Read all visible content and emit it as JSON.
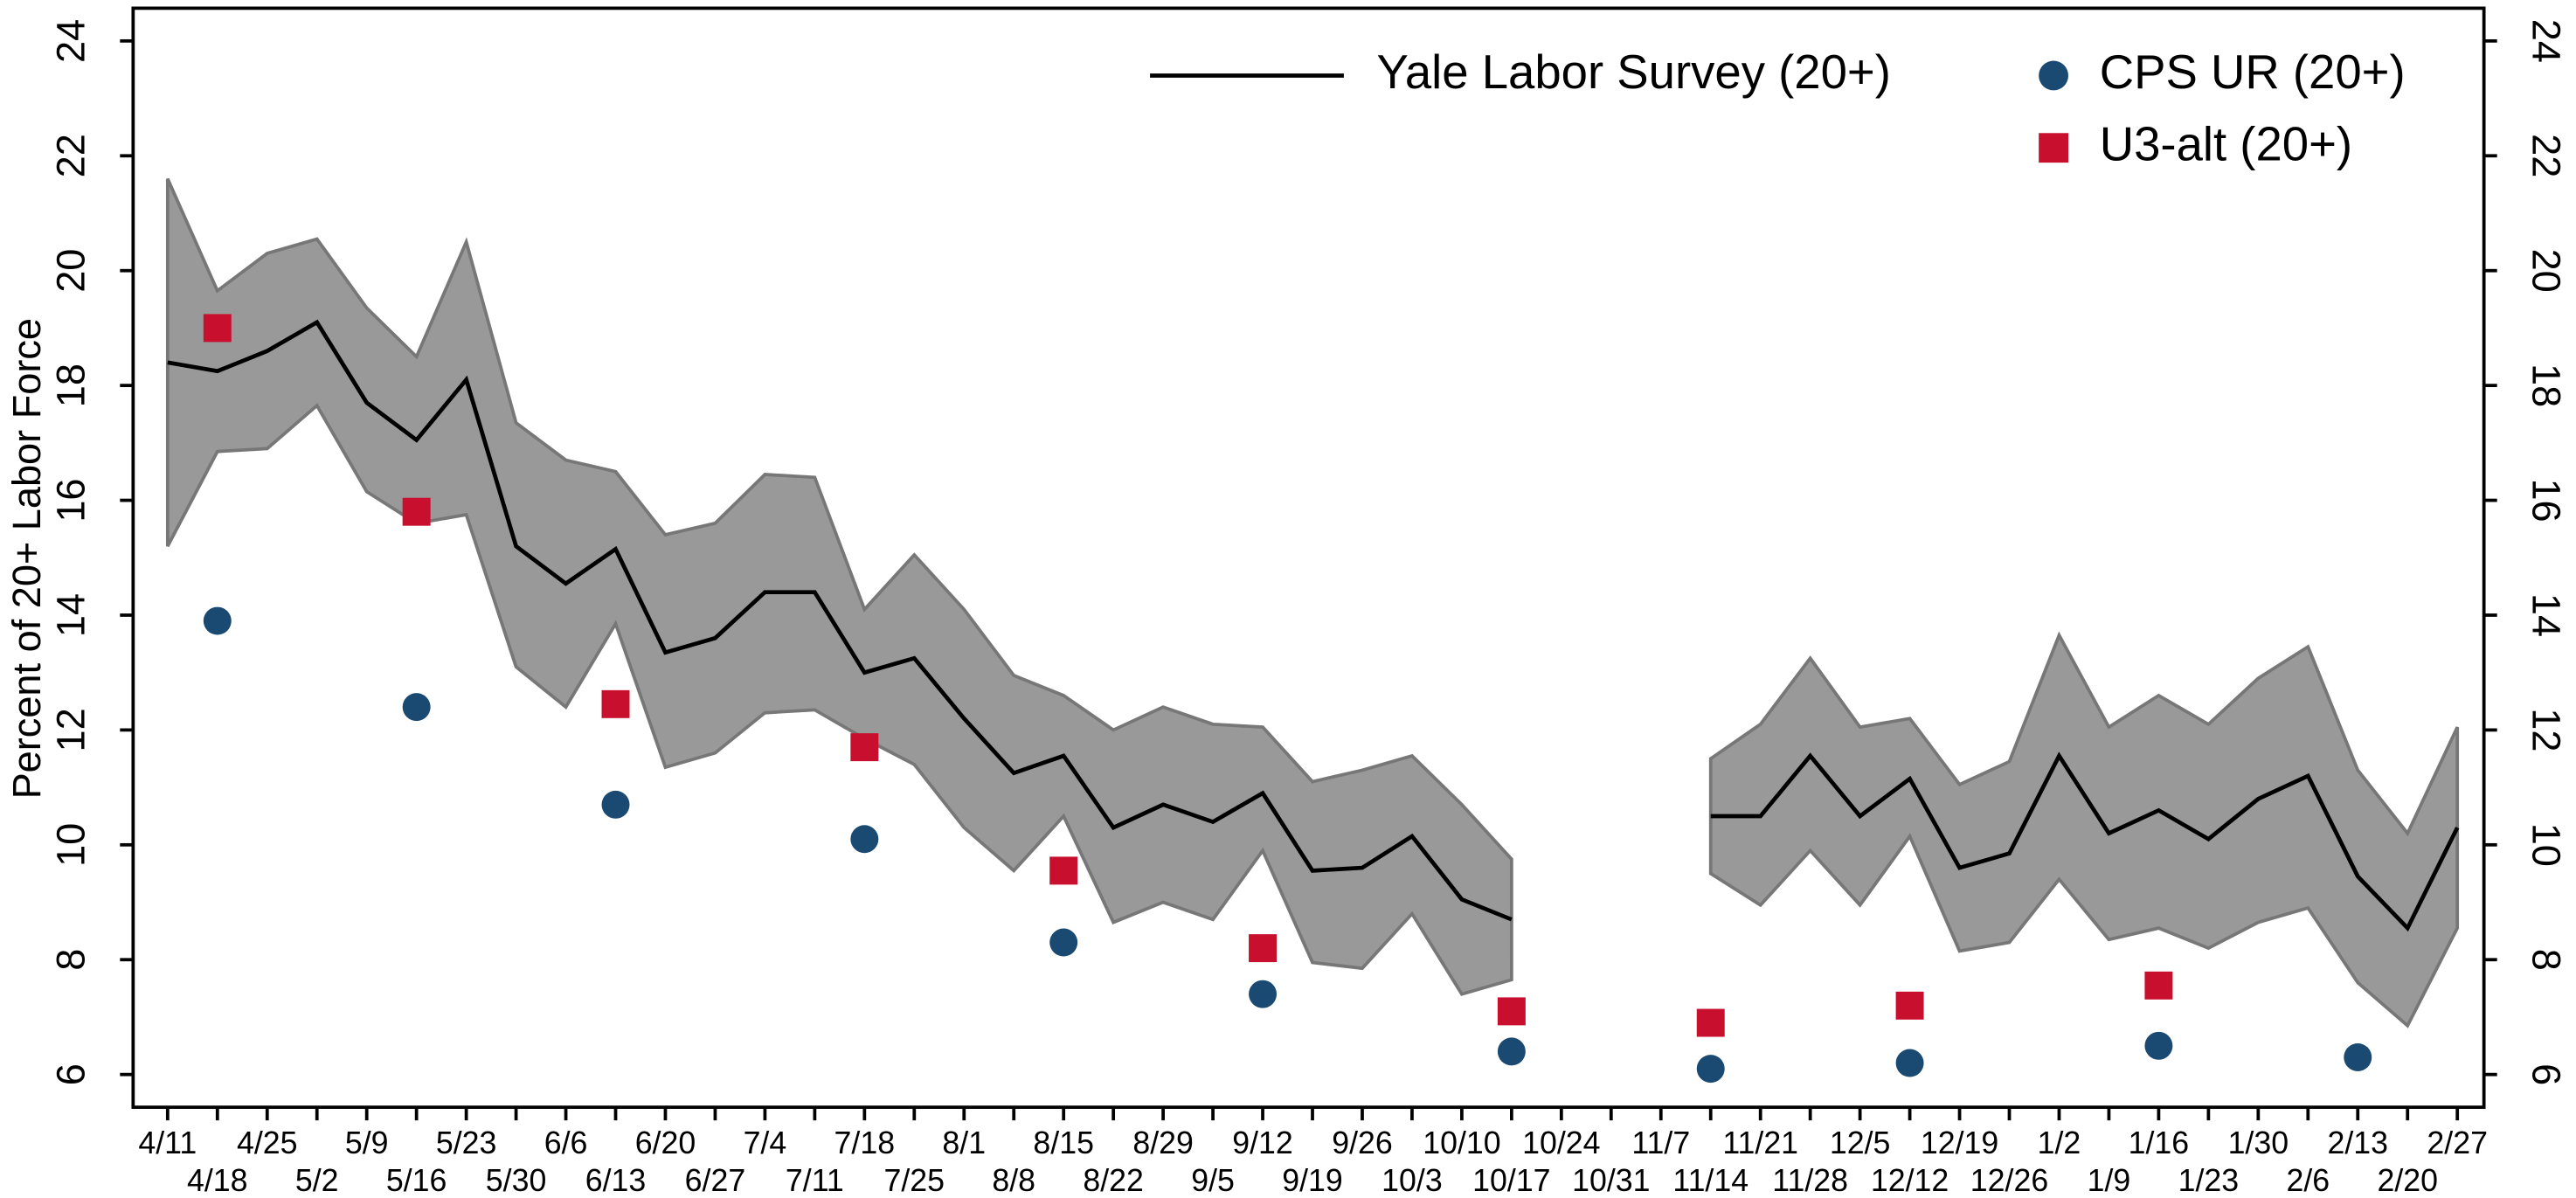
{
  "chart_data": {
    "type": "line",
    "y_label": "Percent of 20+ Labor Force",
    "categories": [
      "4/11",
      "4/18",
      "4/25",
      "5/2",
      "5/9",
      "5/16",
      "5/23",
      "5/30",
      "6/6",
      "6/13",
      "6/20",
      "6/27",
      "7/4",
      "7/11",
      "7/18",
      "7/25",
      "8/1",
      "8/8",
      "8/15",
      "8/22",
      "8/29",
      "9/5",
      "9/12",
      "9/19",
      "9/26",
      "10/3",
      "10/10",
      "10/17",
      "10/24",
      "10/31",
      "11/7",
      "11/14",
      "11/21",
      "11/28",
      "12/5",
      "12/12",
      "12/19",
      "12/26",
      "1/2",
      "1/9",
      "1/16",
      "1/23",
      "1/30",
      "2/6",
      "2/13",
      "2/20",
      "2/27"
    ],
    "series": [
      {
        "name": "Yale Labor Survey (20+)",
        "marker": "line",
        "color": "#000000",
        "values": [
          18.4,
          18.25,
          18.6,
          19.1,
          17.7,
          17.05,
          18.1,
          15.2,
          14.55,
          15.15,
          13.35,
          13.6,
          14.4,
          14.4,
          13.0,
          13.25,
          12.2,
          11.25,
          11.55,
          10.3,
          10.7,
          10.4,
          10.9,
          9.55,
          9.6,
          10.15,
          9.05,
          8.7,
          null,
          null,
          null,
          10.5,
          10.5,
          11.55,
          10.5,
          11.15,
          9.6,
          9.85,
          11.55,
          10.2,
          10.6,
          10.1,
          10.8,
          11.2,
          9.45,
          8.55,
          10.3
        ],
        "band": {
          "color": "#999999",
          "upper": [
            21.6,
            19.65,
            20.3,
            20.55,
            19.35,
            18.5,
            20.5,
            17.35,
            16.7,
            16.5,
            15.4,
            15.6,
            16.45,
            16.4,
            14.1,
            15.05,
            14.1,
            12.95,
            12.6,
            12.0,
            12.4,
            12.1,
            12.05,
            11.1,
            11.3,
            11.55,
            10.7,
            9.75,
            null,
            null,
            null,
            11.5,
            12.1,
            13.25,
            12.05,
            12.2,
            11.05,
            11.45,
            13.65,
            12.05,
            12.6,
            12.1,
            12.9,
            13.45,
            11.3,
            10.2,
            12.05
          ],
          "lower": [
            15.2,
            16.85,
            16.9,
            17.65,
            16.15,
            15.6,
            15.75,
            13.1,
            12.4,
            13.85,
            11.35,
            11.6,
            12.3,
            12.35,
            11.85,
            11.4,
            10.3,
            9.55,
            10.5,
            8.65,
            9.0,
            8.7,
            9.9,
            7.95,
            7.85,
            8.8,
            7.4,
            7.65,
            null,
            null,
            null,
            9.5,
            8.95,
            9.9,
            8.95,
            10.15,
            8.15,
            8.3,
            9.4,
            8.35,
            8.55,
            8.2,
            8.65,
            8.9,
            7.6,
            6.85,
            8.55
          ]
        }
      },
      {
        "name": "CPS UR (20+)",
        "marker": "circle",
        "color": "#1a4a72",
        "values": [
          null,
          13.9,
          null,
          null,
          null,
          12.4,
          null,
          null,
          null,
          10.7,
          null,
          null,
          null,
          null,
          10.1,
          null,
          null,
          null,
          8.3,
          null,
          null,
          null,
          7.4,
          null,
          null,
          null,
          null,
          6.4,
          null,
          null,
          null,
          6.1,
          null,
          null,
          null,
          6.2,
          null,
          null,
          null,
          null,
          6.5,
          null,
          null,
          null,
          6.3,
          null,
          null
        ]
      },
      {
        "name": "U3-alt (20+)",
        "marker": "square",
        "color": "#c8102e",
        "values": [
          null,
          19.0,
          null,
          null,
          null,
          15.8,
          null,
          null,
          null,
          12.45,
          null,
          null,
          null,
          null,
          11.7,
          null,
          null,
          null,
          9.55,
          null,
          null,
          null,
          8.2,
          null,
          null,
          null,
          null,
          7.1,
          null,
          null,
          null,
          6.9,
          null,
          null,
          null,
          7.2,
          null,
          null,
          null,
          null,
          7.55,
          null,
          null,
          null,
          null,
          null,
          null
        ]
      }
    ],
    "ylim": [
      5.43,
      24.57
    ],
    "yticks": [
      6,
      8,
      10,
      12,
      14,
      16,
      18,
      20,
      22,
      24
    ],
    "y2lim": [
      5.43,
      24.57
    ],
    "y2ticks": [
      6,
      8,
      10,
      12,
      14,
      16,
      18,
      20,
      22,
      24
    ]
  }
}
